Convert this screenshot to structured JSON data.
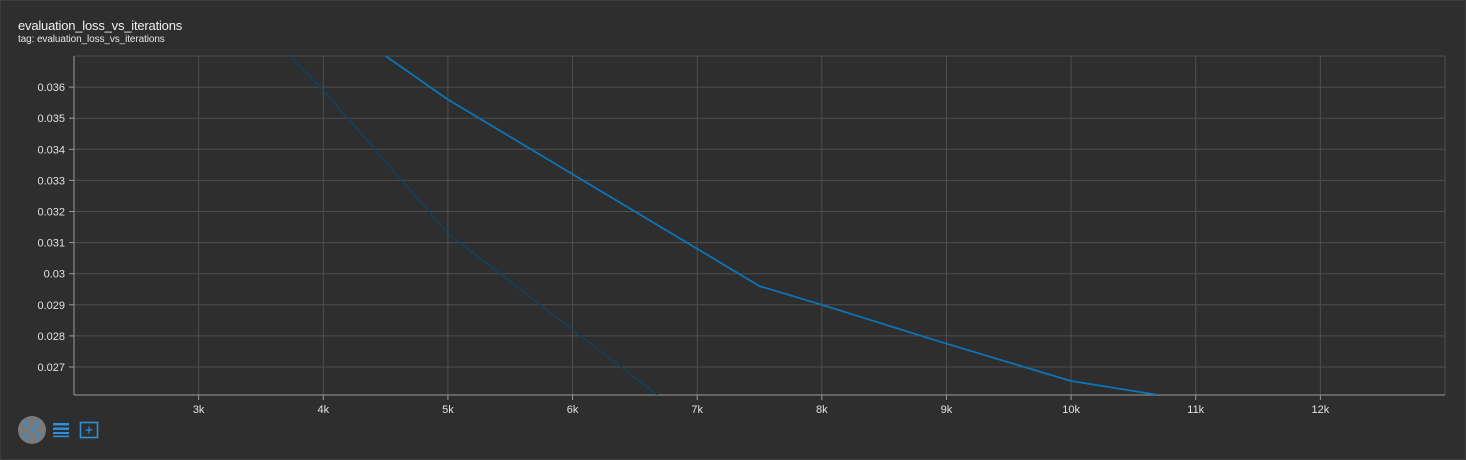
{
  "title": "evaluation_loss_vs_iterations",
  "subtitle": "tag: evaluation_loss_vs_iterations",
  "toolbar": {
    "fit_icon": "fit-to-data-icon",
    "log_icon": "toggle-log-scale-icon",
    "select_icon": "select-region-icon"
  },
  "colors": {
    "background": "#2e2e2e",
    "grid": "#4f4f4f",
    "axis": "#9a9a9a",
    "smoothed_line": "#0a75b6",
    "raw_line": "#13405e",
    "toolbar_accent": "#2f8fd8"
  },
  "chart_data": {
    "type": "line",
    "title": "evaluation_loss_vs_iterations",
    "subtitle": "tag: evaluation_loss_vs_iterations",
    "xlabel": "",
    "ylabel": "",
    "xlim": [
      2000,
      13000
    ],
    "ylim": [
      0.0261,
      0.037
    ],
    "x_ticks": [
      3000,
      4000,
      5000,
      6000,
      7000,
      8000,
      9000,
      10000,
      11000,
      12000
    ],
    "x_tick_labels": [
      "3k",
      "4k",
      "5k",
      "6k",
      "7k",
      "8k",
      "9k",
      "10k",
      "11k",
      "12k"
    ],
    "y_ticks": [
      0.027,
      0.028,
      0.029,
      0.03,
      0.031,
      0.032,
      0.033,
      0.034,
      0.035,
      0.036
    ],
    "y_tick_labels": [
      "0.027",
      "0.028",
      "0.029",
      "0.03",
      "0.031",
      "0.032",
      "0.033",
      "0.034",
      "0.035",
      "0.036"
    ],
    "grid": true,
    "series": [
      {
        "role": "smoothed",
        "color": "#0a75b6",
        "x": [
          4500,
          5000,
          7500,
          8000,
          9000,
          10000,
          10700
        ],
        "y": [
          0.037,
          0.0356,
          0.0296,
          0.029,
          0.02775,
          0.02655,
          0.0261
        ]
      },
      {
        "role": "raw",
        "color": "#13405e",
        "x": [
          3730,
          4000,
          5000,
          6000,
          6680
        ],
        "y": [
          0.037,
          0.0359,
          0.0313,
          0.0282,
          0.0261
        ]
      }
    ]
  }
}
